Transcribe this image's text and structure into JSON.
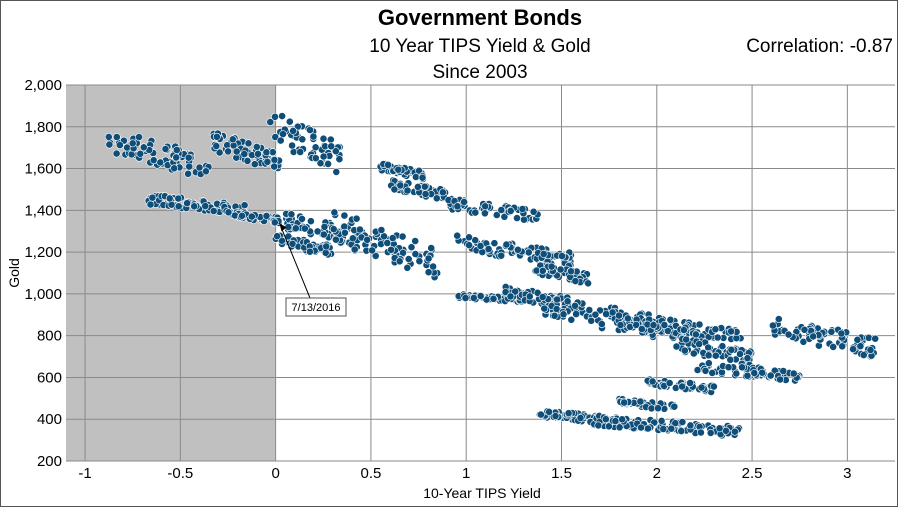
{
  "chart_data": {
    "type": "scatter",
    "title": "Government Bonds",
    "subtitle": "10 Year TIPS Yield & Gold",
    "subtitle2": "Since 2003",
    "correlation_label": "Correlation: -0.87",
    "xlabel": "10-Year TIPS Yield",
    "ylabel": "Gold",
    "xlim": [
      -1.1,
      3.25
    ],
    "ylim": [
      200,
      2000
    ],
    "xticks": [
      -1,
      -0.5,
      0,
      0.5,
      1,
      1.5,
      2,
      2.5,
      3
    ],
    "xtick_labels": [
      "-1",
      "-0.5",
      "0",
      "0.5",
      "1",
      "1.5",
      "2",
      "2.5",
      "3"
    ],
    "yticks": [
      200,
      400,
      600,
      800,
      1000,
      1200,
      1400,
      1600,
      1800,
      2000
    ],
    "ytick_labels": [
      "200",
      "400",
      "600",
      "800",
      "1,000",
      "1,200",
      "1,400",
      "1,600",
      "1,800",
      "2,000"
    ],
    "grid": true,
    "shaded_region": {
      "x": [
        -1.1,
        0
      ],
      "color": "#c0c0c0"
    },
    "marker_color": "#0f4e78",
    "annotation": {
      "text": "7/13/2016",
      "x": 0.01,
      "y": 1357
    },
    "clusters": [
      {
        "x_range": [
          -0.88,
          -0.35
        ],
        "y_range": [
          1560,
          1790
        ]
      },
      {
        "x_range": [
          -0.68,
          -0.15
        ],
        "y_range": [
          1380,
          1480
        ]
      },
      {
        "x_range": [
          -0.33,
          0.02
        ],
        "y_range": [
          1590,
          1780
        ]
      },
      {
        "x_range": [
          -0.03,
          0.35
        ],
        "y_range": [
          1580,
          1880
        ]
      },
      {
        "x_range": [
          -0.25,
          0.02
        ],
        "y_range": [
          1340,
          1400
        ]
      },
      {
        "x_range": [
          0.0,
          0.3
        ],
        "y_range": [
          1180,
          1290
        ]
      },
      {
        "x_range": [
          0.05,
          0.5
        ],
        "y_range": [
          1220,
          1390
        ]
      },
      {
        "x_range": [
          0.3,
          0.85
        ],
        "y_range": [
          1080,
          1400
        ]
      },
      {
        "x_range": [
          0.55,
          0.78
        ],
        "y_range": [
          1550,
          1630
        ]
      },
      {
        "x_range": [
          0.6,
          0.9
        ],
        "y_range": [
          1450,
          1550
        ]
      },
      {
        "x_range": [
          0.9,
          1.38
        ],
        "y_range": [
          1350,
          1460
        ]
      },
      {
        "x_range": [
          0.95,
          1.55
        ],
        "y_range": [
          1130,
          1280
        ]
      },
      {
        "x_range": [
          1.35,
          1.65
        ],
        "y_range": [
          1050,
          1150
        ]
      },
      {
        "x_range": [
          0.95,
          1.3
        ],
        "y_range": [
          960,
          1000
        ]
      },
      {
        "x_range": [
          1.2,
          1.6
        ],
        "y_range": [
          920,
          1040
        ]
      },
      {
        "x_range": [
          1.4,
          2.1
        ],
        "y_range": [
          780,
          1000
        ]
      },
      {
        "x_range": [
          1.8,
          2.45
        ],
        "y_range": [
          780,
          900
        ]
      },
      {
        "x_range": [
          2.1,
          2.5
        ],
        "y_range": [
          660,
          800
        ]
      },
      {
        "x_range": [
          2.2,
          2.75
        ],
        "y_range": [
          580,
          680
        ]
      },
      {
        "x_range": [
          2.6,
          3.15
        ],
        "y_range": [
          700,
          900
        ]
      },
      {
        "x_range": [
          1.95,
          2.3
        ],
        "y_range": [
          530,
          600
        ]
      },
      {
        "x_range": [
          1.8,
          2.1
        ],
        "y_range": [
          440,
          500
        ]
      },
      {
        "x_range": [
          1.35,
          1.75
        ],
        "y_range": [
          380,
          450
        ]
      },
      {
        "x_range": [
          1.65,
          2.45
        ],
        "y_range": [
          320,
          420
        ]
      }
    ]
  }
}
